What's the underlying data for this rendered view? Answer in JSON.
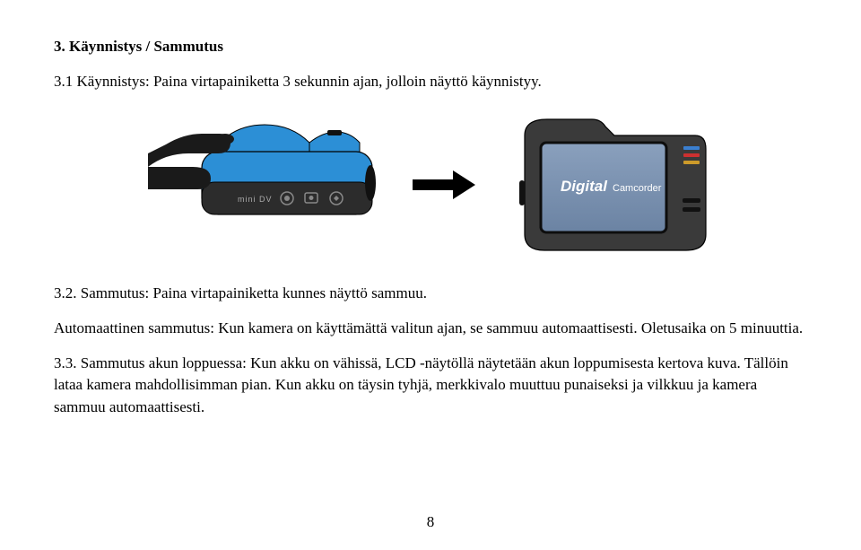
{
  "heading": "3.   Käynnistys / Sammutus",
  "p1": "3.1 Käynnistys: Paina virtapainiketta 3 sekunnin ajan, jolloin näyttö käynnistyy.",
  "p2": "3.2. Sammutus: Paina virtapainiketta kunnes näyttö sammuu.",
  "p3": "Automaattinen sammutus: Kun kamera on käyttämättä valitun ajan, se sammuu automaattisesti. Oletusaika on 5 minuuttia.",
  "p4": "3.3. Sammutus akun loppuessa: Kun akku on vähissä, LCD -näytöllä näytetään akun loppumisesta kertova kuva. Tällöin lataa kamera mahdollisimman pian. Kun akku on täysin tyhjä, merkkivalo muuttuu punaiseksi ja vilkkuu ja kamera sammuu automaattisesti.",
  "pageNumber": "8",
  "figure": {
    "front": {
      "body_color": "#2c8fd6",
      "panel_color": "#2c2c2c",
      "outline": "#000000",
      "label": "mini DV",
      "label_color": "#aaaaaa",
      "icon_color": "#888888",
      "hand_color": "#1a1a1a",
      "lens_color": "#111111"
    },
    "arrow": {
      "color": "#000000"
    },
    "back": {
      "body_color": "#3a3a3a",
      "body_stroke": "#000000",
      "screen_bg1": "#6b83a3",
      "screen_bg2": "#8aa0bd",
      "screen_border": "#0d0d0d",
      "brand_text1": "Digital",
      "brand_text2": "Camcorder",
      "brand_color": "#ffffff",
      "led_colors": [
        "#3a7fd0",
        "#cc3030",
        "#cc9a2a"
      ],
      "led_off": "#444444",
      "slot_color": "#111111"
    }
  }
}
